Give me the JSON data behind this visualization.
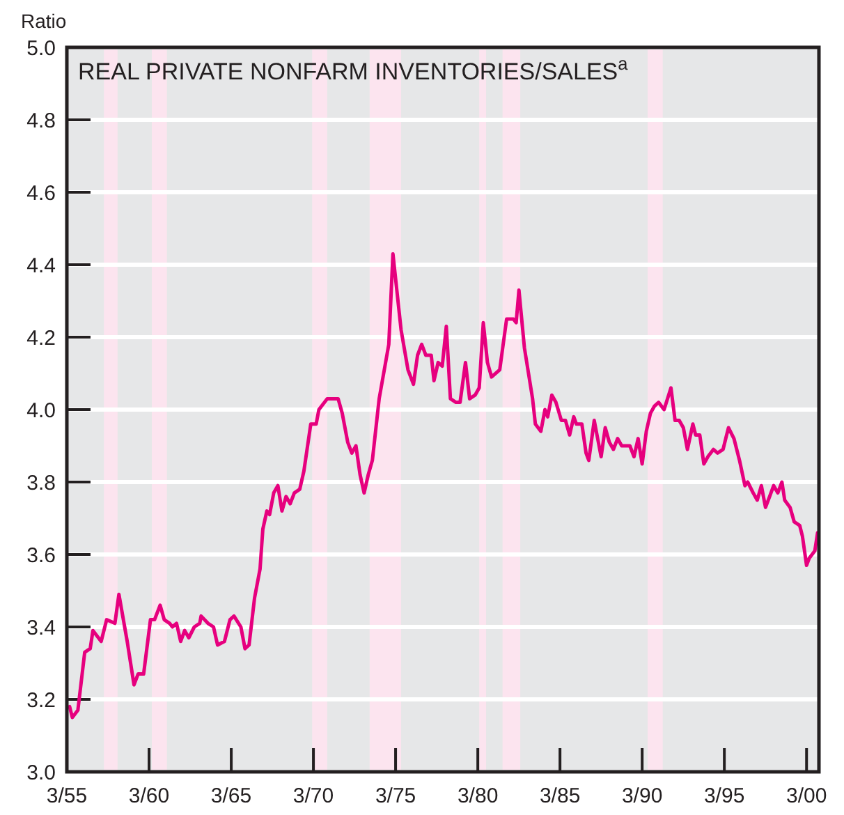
{
  "chart_data": {
    "type": "line",
    "title": "REAL PRIVATE NONFARM INVENTORIES/SALES$^{a}$",
    "ylabel": "Ratio",
    "x": [
      "1955-05",
      "1955-07",
      "1955-11",
      "1956-04",
      "1956-08",
      "1956-10",
      "1957-04",
      "1957-08",
      "1958-02",
      "1958-05",
      "1958-11",
      "1959-04",
      "1959-07",
      "1959-11",
      "1960-04",
      "1960-07",
      "1960-11",
      "1961-02",
      "1961-06",
      "1961-08",
      "1961-11",
      "1962-02",
      "1962-05",
      "1962-08",
      "1962-12",
      "1963-04",
      "1963-05",
      "1963-10",
      "1964-02",
      "1964-05",
      "1964-10",
      "1965-02",
      "1965-05",
      "1965-10",
      "1966-01",
      "1966-04",
      "1966-08",
      "1966-12",
      "1967-02",
      "1967-05",
      "1967-07",
      "1967-10",
      "1968-01",
      "1968-04",
      "1968-07",
      "1968-10",
      "1969-01",
      "1969-05",
      "1969-08",
      "1970-01",
      "1970-05",
      "1970-07",
      "1971-01",
      "1971-09",
      "1971-12",
      "1972-04",
      "1972-07",
      "1972-10",
      "1973-01",
      "1973-04",
      "1973-07",
      "1973-10",
      "1974-03",
      "1974-10",
      "1975-01",
      "1975-07",
      "1975-12",
      "1976-04",
      "1976-07",
      "1976-10",
      "1977-01",
      "1977-05",
      "1977-07",
      "1977-10",
      "1978-01",
      "1978-04",
      "1978-07",
      "1978-11",
      "1979-02",
      "1979-06",
      "1979-09",
      "1980-01",
      "1980-04",
      "1980-07",
      "1980-10",
      "1981-01",
      "1981-07",
      "1981-12",
      "1982-05",
      "1982-07",
      "1982-09",
      "1983-01",
      "1983-07",
      "1983-09",
      "1984-01",
      "1984-04",
      "1984-06",
      "1984-09",
      "1984-12",
      "1985-04",
      "1985-07",
      "1985-10",
      "1986-01",
      "1986-03",
      "1986-07",
      "1986-10",
      "1986-12",
      "1987-04",
      "1987-06",
      "1987-09",
      "1987-12",
      "1988-03",
      "1988-06",
      "1988-09",
      "1988-12",
      "1989-06",
      "1989-09",
      "1989-12",
      "1990-03",
      "1990-06",
      "1990-09",
      "1990-12",
      "1991-03",
      "1991-07",
      "1991-12",
      "1992-03",
      "1992-06",
      "1992-09",
      "1992-12",
      "1993-04",
      "1993-06",
      "1993-09",
      "1993-12",
      "1994-03",
      "1994-07",
      "1994-10",
      "1995-02",
      "1995-04",
      "1995-06",
      "1995-10",
      "1996-02",
      "1996-06",
      "1996-08",
      "1996-12",
      "1997-03",
      "1997-06",
      "1997-09",
      "1997-12",
      "1998-03",
      "1998-06",
      "1998-09",
      "1998-11",
      "1999-03",
      "1999-06",
      "1999-10",
      "1999-12",
      "2000-03",
      "2000-05",
      "2000-09",
      "2000-11"
    ],
    "series": [
      {
        "color": "#e6007e",
        "values": [
          3.18,
          3.15,
          3.17,
          3.33,
          3.34,
          3.39,
          3.36,
          3.42,
          3.41,
          3.49,
          3.36,
          3.24,
          3.27,
          3.27,
          3.42,
          3.42,
          3.46,
          3.42,
          3.41,
          3.4,
          3.41,
          3.36,
          3.39,
          3.37,
          3.4,
          3.41,
          3.43,
          3.41,
          3.4,
          3.35,
          3.36,
          3.42,
          3.43,
          3.4,
          3.34,
          3.35,
          3.48,
          3.56,
          3.67,
          3.72,
          3.71,
          3.77,
          3.79,
          3.72,
          3.76,
          3.74,
          3.77,
          3.78,
          3.83,
          3.96,
          3.96,
          4.0,
          4.03,
          4.03,
          3.99,
          3.91,
          3.88,
          3.9,
          3.82,
          3.77,
          3.82,
          3.86,
          4.03,
          4.18,
          4.43,
          4.22,
          4.11,
          4.07,
          4.15,
          4.18,
          4.15,
          4.15,
          4.08,
          4.13,
          4.12,
          4.23,
          4.03,
          4.02,
          4.02,
          4.13,
          4.03,
          4.04,
          4.06,
          4.24,
          4.13,
          4.09,
          4.11,
          4.25,
          4.25,
          4.24,
          4.33,
          4.17,
          4.03,
          3.96,
          3.94,
          4.0,
          3.98,
          4.04,
          4.02,
          3.97,
          3.97,
          3.93,
          3.98,
          3.96,
          3.96,
          3.88,
          3.86,
          3.97,
          3.93,
          3.87,
          3.95,
          3.91,
          3.89,
          3.92,
          3.9,
          3.9,
          3.87,
          3.92,
          3.85,
          3.94,
          3.99,
          4.01,
          4.02,
          4.0,
          4.06,
          3.97,
          3.97,
          3.95,
          3.89,
          3.96,
          3.93,
          3.93,
          3.85,
          3.87,
          3.89,
          3.88,
          3.89,
          3.92,
          3.95,
          3.92,
          3.86,
          3.79,
          3.8,
          3.77,
          3.75,
          3.79,
          3.73,
          3.76,
          3.79,
          3.77,
          3.8,
          3.75,
          3.73,
          3.69,
          3.68,
          3.65,
          3.57,
          3.59,
          3.61,
          3.66
        ]
      }
    ],
    "xlim": [
      "1955-03",
      "2000-12"
    ],
    "xticks": [
      {
        "value": "1955-03",
        "label": "3/55"
      },
      {
        "value": "1960-03",
        "label": "3/60"
      },
      {
        "value": "1965-03",
        "label": "3/65"
      },
      {
        "value": "1970-03",
        "label": "3/70"
      },
      {
        "value": "1975-03",
        "label": "3/75"
      },
      {
        "value": "1980-03",
        "label": "3/80"
      },
      {
        "value": "1985-03",
        "label": "3/85"
      },
      {
        "value": "1990-03",
        "label": "3/90"
      },
      {
        "value": "1995-03",
        "label": "3/95"
      },
      {
        "value": "2000-03",
        "label": "3/00"
      }
    ],
    "ylim": [
      3,
      5
    ],
    "yticks": [
      {
        "value": 3,
        "label": "3.0"
      },
      {
        "value": 3.2,
        "label": "3.2"
      },
      {
        "value": 3.4,
        "label": "3.4"
      },
      {
        "value": 3.6,
        "label": "3.6"
      },
      {
        "value": 3.8,
        "label": "3.8"
      },
      {
        "value": 4,
        "label": "4.0"
      },
      {
        "value": 4.2,
        "label": "4.2"
      },
      {
        "value": 4.4,
        "label": "4.4"
      },
      {
        "value": 4.6,
        "label": "4.6"
      },
      {
        "value": 4.8,
        "label": "4.8"
      },
      {
        "value": 5,
        "label": "5.0"
      }
    ],
    "grid": "y",
    "line_style": "solid",
    "marker": "none",
    "bands": [
      {
        "axis": "x",
        "from": "1957-06",
        "to": "1958-04",
        "color": "#fce4ef"
      },
      {
        "axis": "x",
        "from": "1960-05",
        "to": "1961-04",
        "color": "#fce4ef"
      },
      {
        "axis": "x",
        "from": "1970-02",
        "to": "1971-01",
        "color": "#fce4ef"
      },
      {
        "axis": "x",
        "from": "1973-08",
        "to": "1975-07",
        "color": "#fce4ef"
      },
      {
        "axis": "x",
        "from": "1980-04",
        "to": "1980-09",
        "color": "#fce4ef"
      },
      {
        "axis": "x",
        "from": "1981-09",
        "to": "1982-10",
        "color": "#fce4ef"
      },
      {
        "axis": "x",
        "from": "1990-07",
        "to": "1991-06",
        "color": "#fce4ef"
      }
    ]
  }
}
